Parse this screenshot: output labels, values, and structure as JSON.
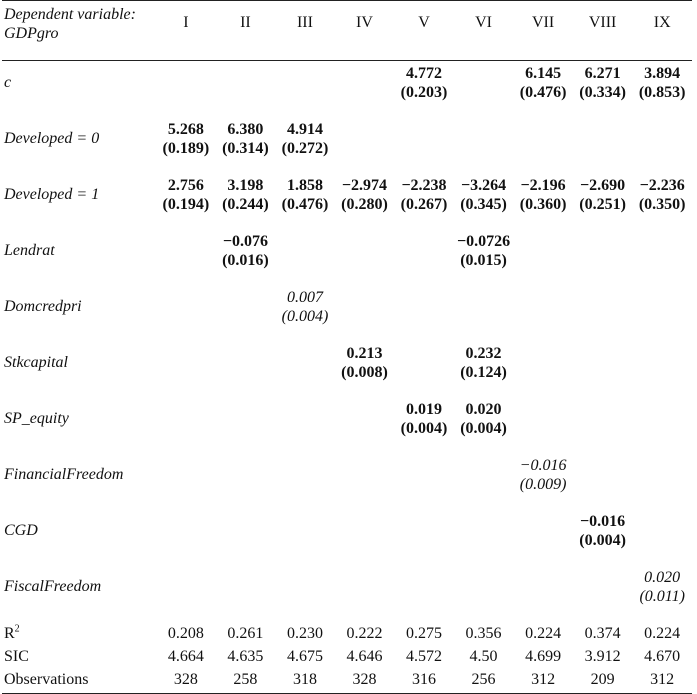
{
  "header": {
    "dep_var_line1": "Dependent variable:",
    "dep_var_line2": "GDPgro",
    "columns": [
      "I",
      "II",
      "III",
      "IV",
      "V",
      "VI",
      "VII",
      "VIII",
      "IX"
    ]
  },
  "rows": [
    {
      "label": "c",
      "cells": [
        null,
        null,
        null,
        null,
        {
          "coef": "4.772",
          "se": "(0.203)",
          "style": "bold"
        },
        null,
        {
          "coef": "6.145",
          "se": "(0.476)",
          "style": "bold"
        },
        {
          "coef": "6.271",
          "se": "(0.334)",
          "style": "bold"
        },
        {
          "coef": "3.894",
          "se": "(0.853)",
          "style": "bold"
        }
      ]
    },
    {
      "label": "Developed = 0",
      "cells": [
        {
          "coef": "5.268",
          "se": "(0.189)",
          "style": "bold"
        },
        {
          "coef": "6.380",
          "se": "(0.314)",
          "style": "bold"
        },
        {
          "coef": "4.914",
          "se": "(0.272)",
          "style": "bold"
        },
        null,
        null,
        null,
        null,
        null,
        null
      ]
    },
    {
      "label": "Developed = 1",
      "cells": [
        {
          "coef": "2.756",
          "se": "(0.194)",
          "style": "bold"
        },
        {
          "coef": "3.198",
          "se": "(0.244)",
          "style": "bold"
        },
        {
          "coef": "1.858",
          "se": "(0.476)",
          "style": "bold"
        },
        {
          "coef": "−2.974",
          "se": "(0.280)",
          "style": "bold"
        },
        {
          "coef": "−2.238",
          "se": "(0.267)",
          "style": "bold"
        },
        {
          "coef": "−3.264",
          "se": "(0.345)",
          "style": "bold"
        },
        {
          "coef": "−2.196",
          "se": "(0.360)",
          "style": "bold"
        },
        {
          "coef": "−2.690",
          "se": "(0.251)",
          "style": "bold"
        },
        {
          "coef": "−2.236",
          "se": "(0.350)",
          "style": "bold"
        }
      ]
    },
    {
      "label": "Lendrat",
      "cells": [
        null,
        {
          "coef": "−0.076",
          "se": "(0.016)",
          "style": "bold"
        },
        null,
        null,
        null,
        {
          "coef": "−0.0726",
          "se": "(0.015)",
          "style": "bold"
        },
        null,
        null,
        null
      ]
    },
    {
      "label": "Domcredpri",
      "cells": [
        null,
        null,
        {
          "coef": "0.007",
          "se": "(0.004)",
          "style": "italic"
        },
        null,
        null,
        null,
        null,
        null,
        null
      ]
    },
    {
      "label": "Stkcapital",
      "cells": [
        null,
        null,
        null,
        {
          "coef": "0.213",
          "se": "(0.008)",
          "style": "bold"
        },
        null,
        {
          "coef": "0.232",
          "se": "(0.124)",
          "style": "bold"
        },
        null,
        null,
        null
      ]
    },
    {
      "label": "SP_equity",
      "cells": [
        null,
        null,
        null,
        null,
        {
          "coef": "0.019",
          "se": "(0.004)",
          "style": "bold"
        },
        {
          "coef": "0.020",
          "se": "(0.004)",
          "style": "bold"
        },
        null,
        null,
        null
      ]
    },
    {
      "label": "FinancialFreedom",
      "cells": [
        null,
        null,
        null,
        null,
        null,
        null,
        {
          "coef": "−0.016",
          "se": "(0.009)",
          "style": "italic"
        },
        null,
        null
      ]
    },
    {
      "label": "CGD",
      "cells": [
        null,
        null,
        null,
        null,
        null,
        null,
        null,
        {
          "coef": "−0.016",
          "se": "(0.004)",
          "style": "bold"
        },
        null
      ]
    },
    {
      "label": "FiscalFreedom",
      "cells": [
        null,
        null,
        null,
        null,
        null,
        null,
        null,
        null,
        {
          "coef": "0.020",
          "se": "(0.011)",
          "style": "italic"
        }
      ]
    }
  ],
  "stats": [
    {
      "label": "R",
      "sup": "2",
      "values": [
        "0.208",
        "0.261",
        "0.230",
        "0.222",
        "0.275",
        "0.356",
        "0.224",
        "0.374",
        "0.224"
      ]
    },
    {
      "label": "SIC",
      "sup": "",
      "values": [
        "4.664",
        "4.635",
        "4.675",
        "4.646",
        "4.572",
        "4.50",
        "4.699",
        "3.912",
        "4.670"
      ]
    },
    {
      "label": "Observations",
      "sup": "",
      "values": [
        "328",
        "258",
        "318",
        "328",
        "316",
        "256",
        "312",
        "209",
        "312"
      ]
    }
  ]
}
